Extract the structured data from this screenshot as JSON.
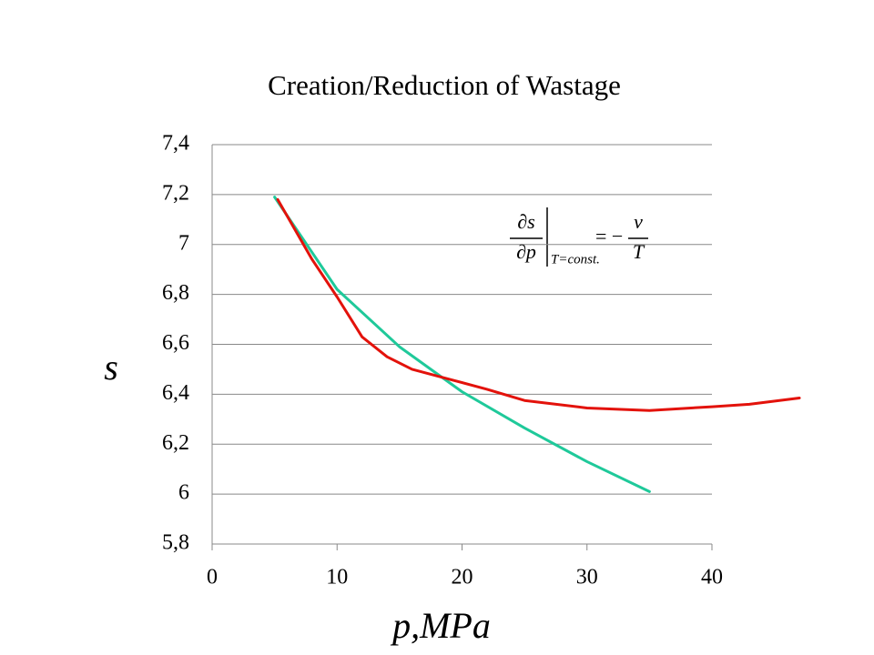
{
  "chart_data": {
    "type": "line",
    "title": "Creation/Reduction of Wastage",
    "x_label": "p,MPa",
    "y_label": "s",
    "annotation": {
      "lhs_num": "∂s",
      "lhs_den": "∂p",
      "subscript": "T=const.",
      "equals": "= −",
      "rhs_num": "v",
      "rhs_den": "T"
    },
    "xlim": [
      0,
      40
    ],
    "xticks": [
      0,
      10,
      20,
      30,
      40
    ],
    "ylim": [
      5.8,
      7.4
    ],
    "yticks": [
      {
        "value": 5.8,
        "label": "5,8"
      },
      6,
      {
        "value": 6.2,
        "label": "6,2"
      },
      {
        "value": 6.4,
        "label": "6,4"
      },
      {
        "value": 6.6,
        "label": "6,6"
      },
      {
        "value": 6.8,
        "label": "6,8"
      },
      7,
      {
        "value": 7.2,
        "label": "7,2"
      },
      {
        "value": 7.4,
        "label": "7,4"
      }
    ],
    "grid": true,
    "series": [
      {
        "color": "#1fc99a",
        "x": [
          5,
          10,
          15,
          20,
          25,
          30,
          35
        ],
        "values": [
          7.19,
          6.82,
          6.59,
          6.41,
          6.265,
          6.13,
          6.01
        ]
      },
      {
        "color": "#e3120b",
        "x": [
          5.25,
          8,
          10,
          12,
          14,
          16,
          19,
          22,
          25,
          30,
          35,
          40,
          43,
          47
        ],
        "values": [
          7.18,
          6.94,
          6.79,
          6.63,
          6.55,
          6.5,
          6.46,
          6.42,
          6.375,
          6.345,
          6.335,
          6.35,
          6.36,
          6.385
        ]
      }
    ]
  }
}
